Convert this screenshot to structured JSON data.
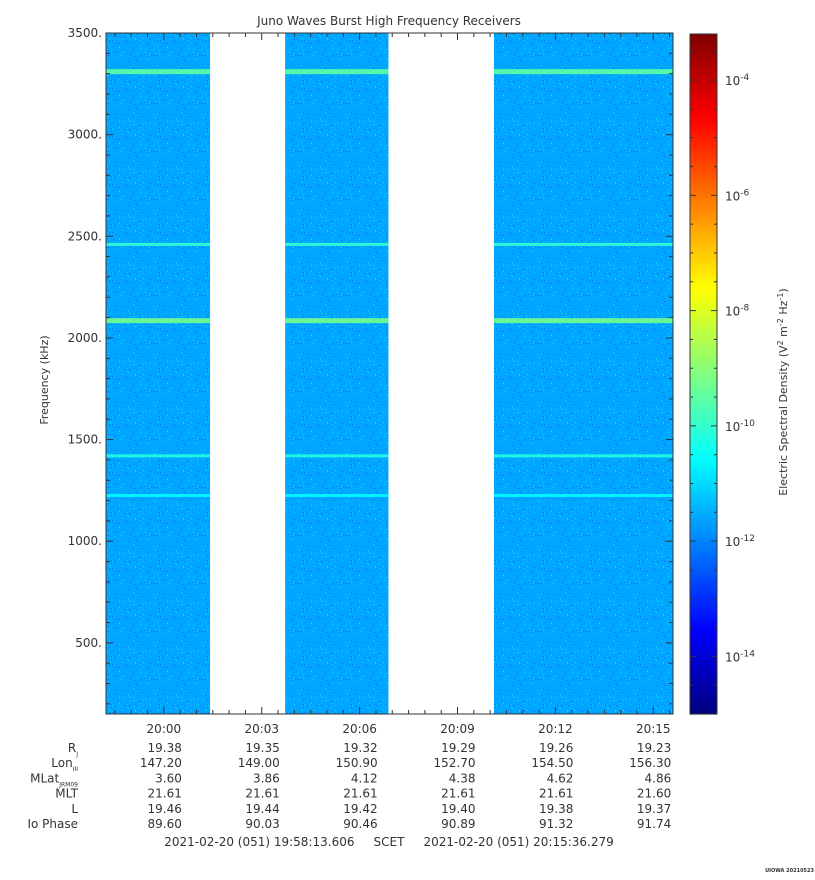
{
  "chart_data": {
    "type": "heatmap",
    "title": "Juno Waves Burst High Frequency Receivers",
    "ylabel": "Frequency (kHz)",
    "ylim": [
      150,
      3500
    ],
    "yticks": [
      {
        "v": 500,
        "label": "500."
      },
      {
        "v": 1000,
        "label": "1000."
      },
      {
        "v": 1500,
        "label": "1500."
      },
      {
        "v": 2000,
        "label": "2000."
      },
      {
        "v": 2500,
        "label": "2500."
      },
      {
        "v": 3000,
        "label": "3000."
      },
      {
        "v": 3500,
        "label": "3500."
      }
    ],
    "yminor_step": 100,
    "xlim": [
      "19:58:13.606",
      "20:15:36.279"
    ],
    "xticks": [
      "20:00",
      "20:03",
      "20:06",
      "20:09",
      "20:12",
      "20:15"
    ],
    "data_segments": [
      [
        "19:58:13",
        "20:01:25"
      ],
      [
        "20:03:43",
        "20:06:53"
      ],
      [
        "20:10:07",
        "20:15:36"
      ]
    ],
    "colorbar": {
      "label_main": "Electric Spectral Density (V",
      "label_exp1": "2",
      "label_mid": " m",
      "label_exp2": "-2",
      "label_mid2": " Hz",
      "label_exp3": "-1",
      "label_end": ")",
      "min_exp": -15,
      "max_exp": -3.2,
      "ticks": [
        {
          "exp": -14,
          "base": "10",
          "sup": "-14"
        },
        {
          "exp": -12,
          "base": "10",
          "sup": "-12"
        },
        {
          "exp": -10,
          "base": "10",
          "sup": "-10"
        },
        {
          "exp": -8,
          "base": "10",
          "sup": "-8"
        },
        {
          "exp": -6,
          "base": "10",
          "sup": "-6"
        },
        {
          "exp": -4,
          "base": "10",
          "sup": "-4"
        }
      ]
    },
    "background_level_exp": -11.6,
    "emission_lines": [
      {
        "freq": 3310,
        "level_exp": -9.5
      },
      {
        "freq": 2460,
        "level_exp": -10.0
      },
      {
        "freq": 2085,
        "level_exp": -9.2
      },
      {
        "freq": 1420,
        "level_exp": -10.2
      },
      {
        "freq": 1225,
        "level_exp": -10.6
      }
    ],
    "ephemeris": [
      {
        "label": "R",
        "sub": "J",
        "values": [
          "19.38",
          "19.35",
          "19.32",
          "19.29",
          "19.26",
          "19.23"
        ]
      },
      {
        "label": "Lon",
        "sub": "III",
        "values": [
          "147.20",
          "149.00",
          "150.90",
          "152.70",
          "154.50",
          "156.30"
        ]
      },
      {
        "label": "MLat",
        "sub": "JRM09",
        "values": [
          "3.60",
          "3.86",
          "4.12",
          "4.38",
          "4.62",
          "4.86"
        ]
      },
      {
        "label": "MLT",
        "sub": "",
        "values": [
          "21.61",
          "21.61",
          "21.61",
          "21.61",
          "21.61",
          "21.60"
        ]
      },
      {
        "label": "L",
        "sub": "",
        "values": [
          "19.46",
          "19.44",
          "19.42",
          "19.40",
          "19.38",
          "19.37"
        ]
      },
      {
        "label": "Io Phase",
        "sub": "",
        "values": [
          "89.60",
          "90.03",
          "90.46",
          "90.89",
          "91.32",
          "91.74"
        ]
      }
    ],
    "time_range_text": "2021-02-20 (051) 19:58:13.606     SCET     2021-02-20 (051) 20:15:36.279",
    "footer_tag": "UIOWA 20210523"
  }
}
